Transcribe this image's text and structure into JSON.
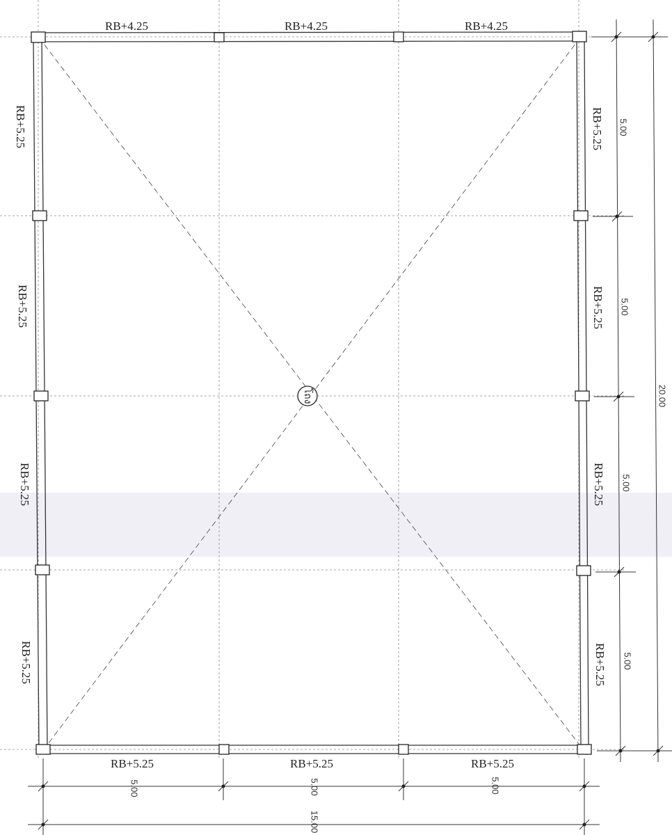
{
  "plan": {
    "top_beams": [
      "RB+4.25",
      "RB+4.25",
      "RB+4.25"
    ],
    "bottom_beams": [
      "RB+5.25",
      "RB+5.25",
      "RB+5.25"
    ],
    "left_beams": [
      "RB+5.25",
      "RB+5.25",
      "RB+5.25",
      "RB+5.25"
    ],
    "right_beams": [
      "RB+5.25",
      "RB+5.25",
      "RB+5.25",
      "RB+5.25"
    ],
    "center_label": "โถง"
  },
  "dimensions": {
    "bottom_spans": [
      "5.00",
      "5.00",
      "5.00"
    ],
    "bottom_total": "15.00",
    "right_spans": [
      "5.00",
      "5.00",
      "5.00",
      "5.00"
    ],
    "right_total": "20.00"
  }
}
